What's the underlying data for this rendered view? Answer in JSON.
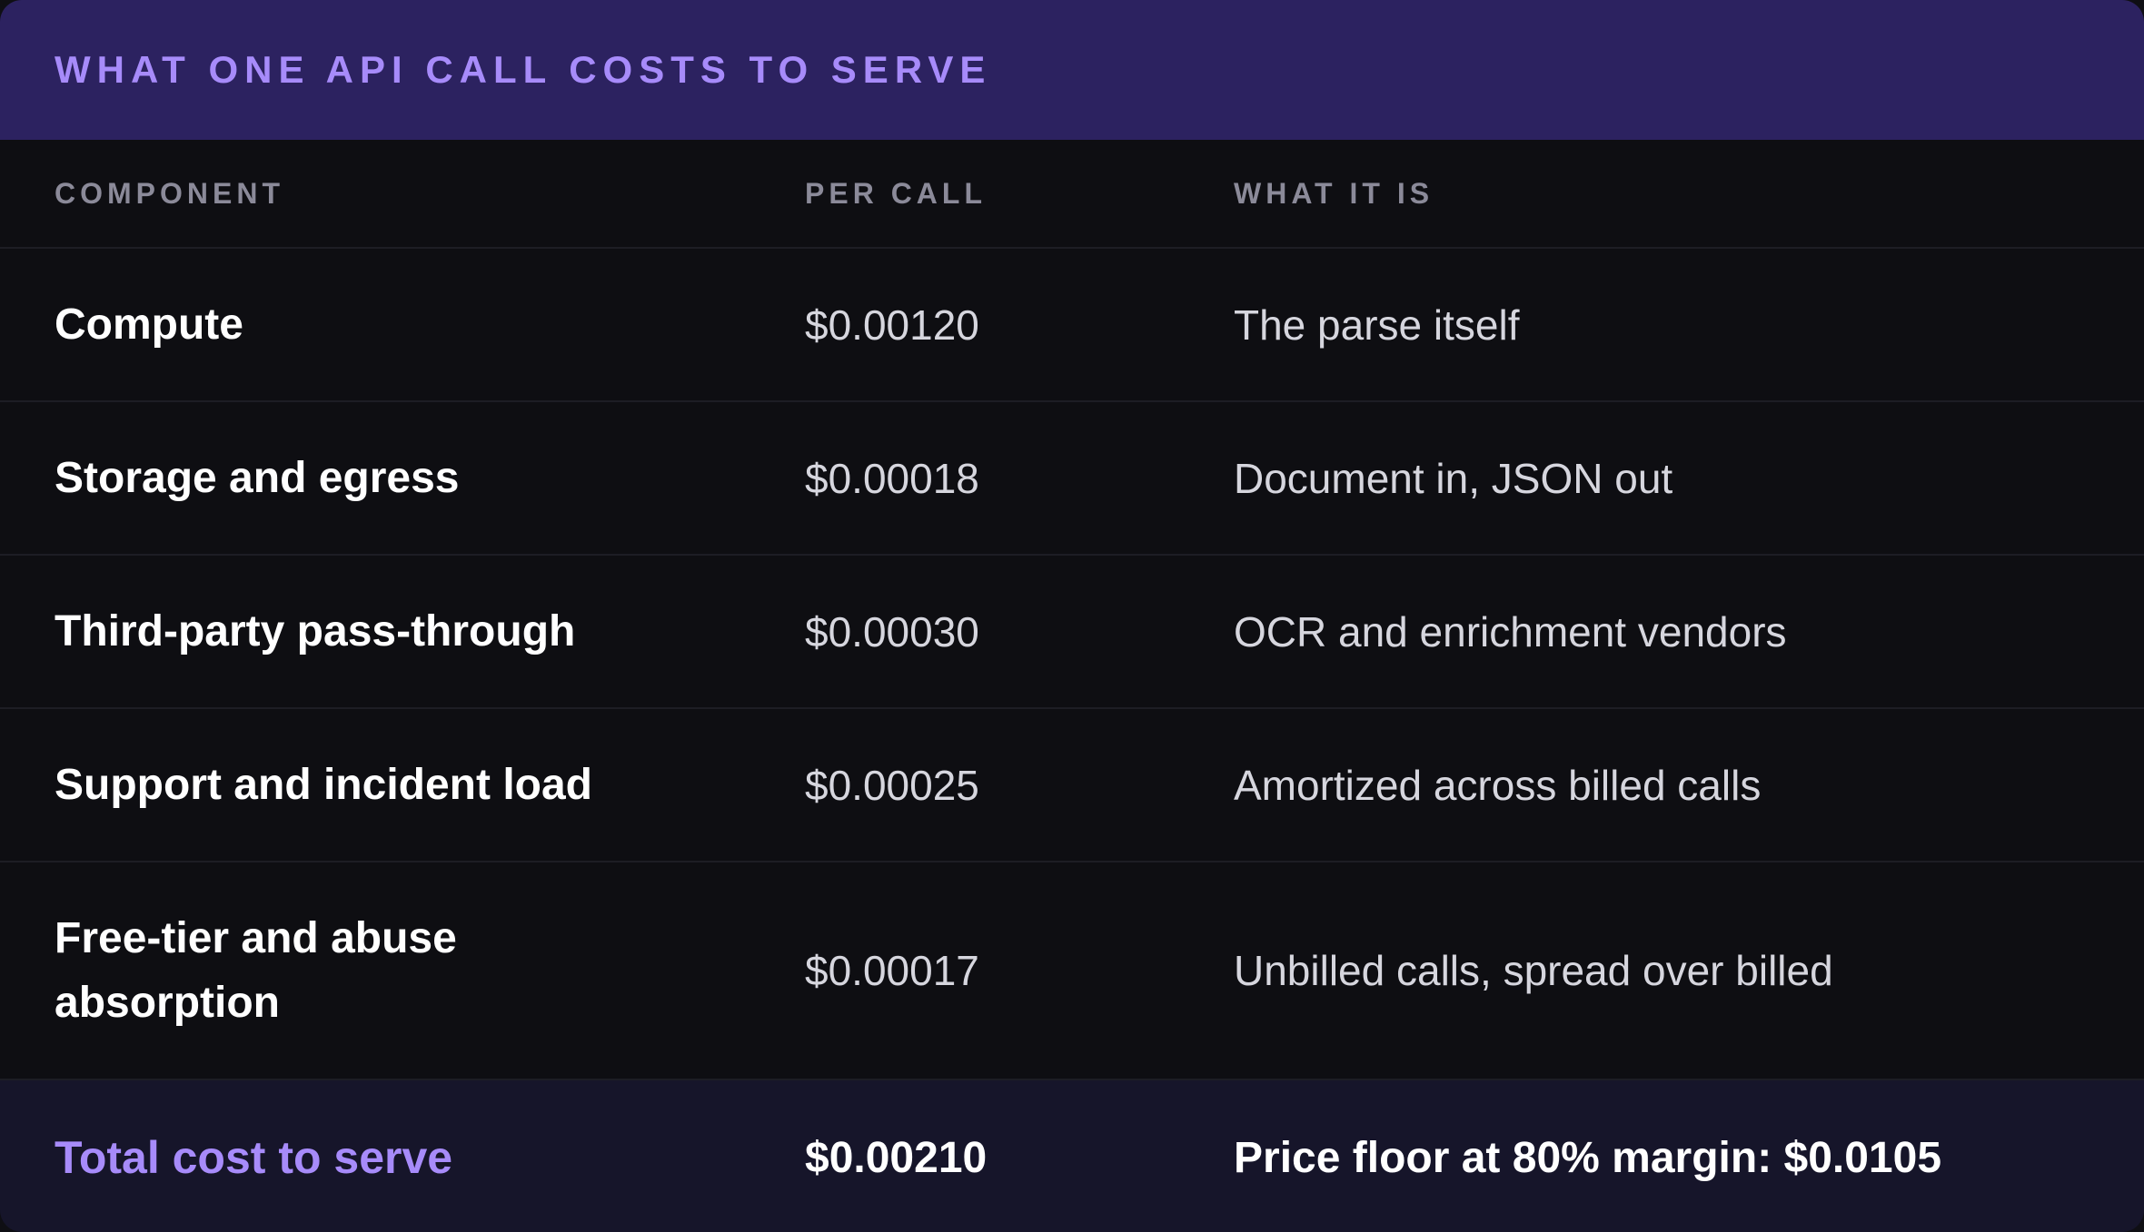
{
  "card": {
    "title": "WHAT ONE API CALL COSTS TO SERVE"
  },
  "table": {
    "columns": [
      "COMPONENT",
      "PER CALL",
      "WHAT IT IS"
    ],
    "rows": [
      {
        "component": "Compute",
        "per_call": "$0.00120",
        "what": "The parse itself"
      },
      {
        "component": "Storage and egress",
        "per_call": "$0.00018",
        "what": "Document in, JSON out"
      },
      {
        "component": "Third-party pass-through",
        "per_call": "$0.00030",
        "what": "OCR and enrichment vendors"
      },
      {
        "component": "Support and incident load",
        "per_call": "$0.00025",
        "what": "Amortized across billed calls"
      },
      {
        "component": "Free-tier and abuse absorption",
        "per_call": "$0.00017",
        "what": "Unbilled calls, spread over billed"
      }
    ],
    "total": {
      "component": "Total cost to serve",
      "per_call": "$0.00210",
      "what": "Price floor at 80% margin: $0.0105"
    }
  },
  "colors": {
    "header_bg": "#2c2260",
    "accent": "#a78bfa",
    "body_bg": "#0e0e12",
    "total_bg": "#16152a"
  }
}
